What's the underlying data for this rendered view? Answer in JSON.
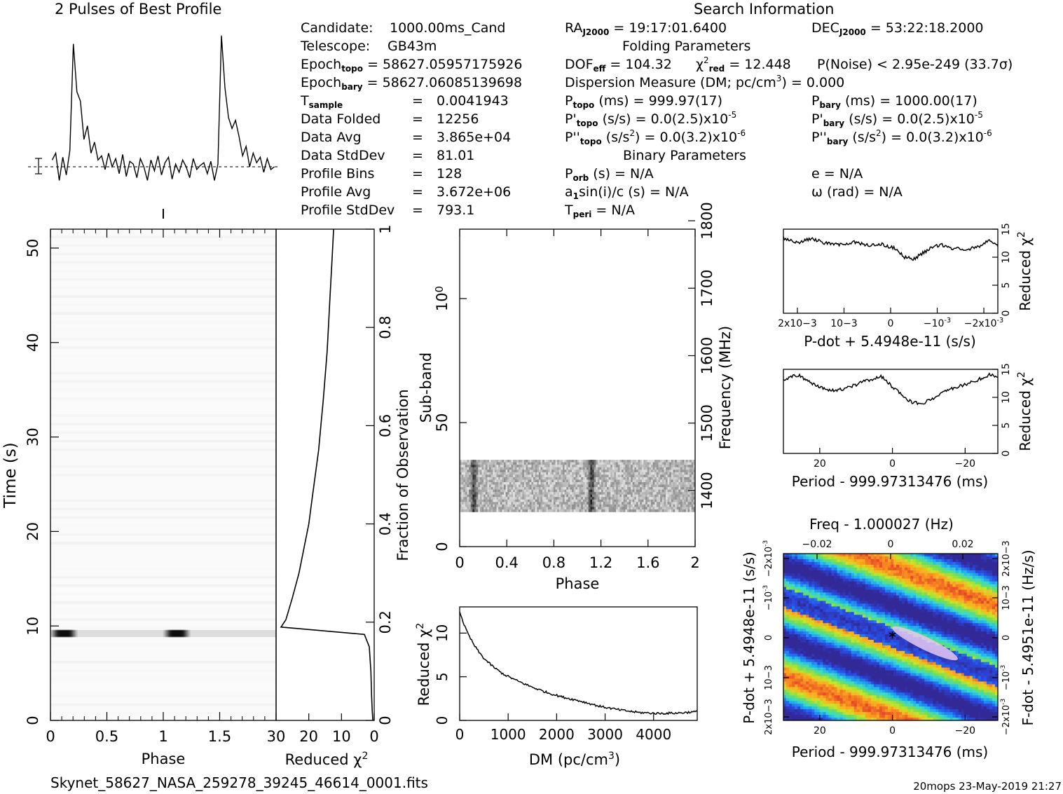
{
  "texts": {
    "profile_title": "2 Pulses of Best Profile",
    "search_title": "Search Information",
    "footer_file": "Skynet_58627_NASA_259278_39245_46614_0001.fits",
    "footer_stamp": "20mops 23-May-2019 21:27"
  },
  "info": {
    "candidate": {
      "label": "Candidate:",
      "value": "1000.00ms_Cand"
    },
    "telescope": {
      "label": "Telescope:",
      "value": "GB43m"
    },
    "epoch_topo": {
      "label": "Epoch",
      "sub": "topo",
      "value": "= 58627.05957175926"
    },
    "epoch_bary": {
      "label": "Epoch",
      "sub": "bary",
      "value": "= 58627.06085139698"
    },
    "t_sample": {
      "label": "T",
      "sub": "sample",
      "eq": "=",
      "value": "0.0041943"
    },
    "data_folded": {
      "label": "Data Folded",
      "eq": "=",
      "value": "12256"
    },
    "data_avg": {
      "label": "Data Avg",
      "eq": "=",
      "value": "3.865e+04"
    },
    "data_std": {
      "label": "Data StdDev",
      "eq": "=",
      "value": "81.01"
    },
    "profile_bins": {
      "label": "Profile Bins",
      "eq": "=",
      "value": "128"
    },
    "profile_avg": {
      "label": "Profile Avg",
      "eq": "=",
      "value": "3.672e+06"
    },
    "profile_std": {
      "label": "Profile StdDev",
      "eq": "=",
      "value": "793.1"
    },
    "ra": {
      "label": "RA",
      "sub": "J2000",
      "value": "= 19:17:01.6400"
    },
    "dec": {
      "label": "DEC",
      "sub": "J2000",
      "value": "= 53:22:18.2000"
    },
    "folding_title": "Folding Parameters",
    "dof": {
      "label": "DOF",
      "sub": "eff",
      "value": "= 104.32"
    },
    "chi2": {
      "sym": "χ",
      "sup": "2",
      "sub": "red",
      "value": "= 12.448"
    },
    "pnoise": {
      "value": "P(Noise) < 2.95e-249   (33.7σ)"
    },
    "dm": {
      "text": "Dispersion Measure (DM; pc/cm",
      "sup": "3",
      "tail": ") = 0.000"
    },
    "ptopo": {
      "label": "P",
      "sub": "topo",
      "value": "(ms) =  999.97(17)"
    },
    "pbary": {
      "label": "P",
      "sub": "bary",
      "value": "(ms) =  1000.00(17)"
    },
    "pdtopo": {
      "label": "P'",
      "sub": "topo",
      "value": "(s/s) = 0.0(2.5)x10",
      "sup": "-5"
    },
    "pdbary": {
      "label": "P'",
      "sub": "bary",
      "value": "(s/s) = 0.0(2.5)x10",
      "sup": "-5"
    },
    "pddtopo": {
      "label": "P''",
      "sub": "topo",
      "value1": "(s/s",
      "sup1": "2",
      "value2": ") = 0.0(3.2)x10",
      "sup2": "-6"
    },
    "pddbary": {
      "label": "P''",
      "sub": "bary",
      "value1": "(s/s",
      "sup1": "2",
      "value2": ") = 0.0(3.2)x10",
      "sup2": "-6"
    },
    "binary_title": "Binary Parameters",
    "porb": {
      "label": "P",
      "sub": "orb",
      "value": "(s) = N/A"
    },
    "ecc": {
      "value": "e = N/A"
    },
    "asini": {
      "l1": "a",
      "sub": "1",
      "l2": "sin(i)/c (s) = N/A"
    },
    "omega": {
      "value": "ω (rad) = N/A"
    },
    "tperi": {
      "label": "T",
      "sub": "peri",
      "value": "= N/A"
    }
  },
  "chart_data": [
    {
      "id": "pulse_profile",
      "type": "line",
      "title": "2 Pulses of Best Profile",
      "x_range": [
        0,
        2
      ],
      "y": [
        0.05,
        0.1,
        -0.1,
        0.07,
        -0.06,
        0.12,
        0.9,
        0.55,
        0.48,
        0.2,
        0.3,
        0.1,
        0.18,
        0.05,
        0.08,
        -0.02,
        0.1,
        0.0,
        0.06,
        -0.05,
        0.09,
        -0.07,
        0.04,
        0.02,
        -0.08,
        0.06,
        0.0,
        -0.1,
        0.05,
        -0.03,
        0.08,
        -0.06,
        0.03,
        0.07,
        -0.09,
        0.02,
        -0.04,
        0.05,
        0.0,
        -0.08,
        0.06,
        -0.02,
        0.01,
        0.03,
        -0.05,
        0.04,
        -0.1,
        0.02,
        0.96,
        0.58,
        0.36,
        0.28,
        0.34,
        0.22,
        0.08,
        0.15,
        0.0,
        0.1,
        0.03,
        0.07,
        -0.04,
        0.06,
        -0.02,
        0.0
      ]
    },
    {
      "id": "time_phase",
      "type": "heatmap",
      "xlabel": "Phase",
      "ylabel": "Time (s)",
      "x_ticks": [
        "0",
        "0.5",
        "1",
        "1.5"
      ],
      "y_ticks": [
        "0",
        "10",
        "20",
        "30",
        "40",
        "50"
      ],
      "x_range": [
        0,
        2
      ],
      "y_range": [
        0,
        52
      ],
      "bright_subint_time": 9.2,
      "pulse_phases": [
        0.12,
        1.12
      ]
    },
    {
      "id": "reduced_chi2_vs_fraction",
      "type": "line",
      "xlabel": "Reduced χ2",
      "ylabel": "Fraction of Observation",
      "x_ticks": [
        "30",
        "20",
        "10",
        "0"
      ],
      "y_ticks": [
        "0",
        "0.2",
        "0.4",
        "0.6",
        "0.8",
        "1"
      ],
      "x_range": [
        30,
        0
      ],
      "y_range": [
        0,
        1
      ],
      "points": [
        [
          0.4,
          0.0
        ],
        [
          0.6,
          0.02
        ],
        [
          0.8,
          0.05
        ],
        [
          1.0,
          0.1
        ],
        [
          1.5,
          0.15
        ],
        [
          3.0,
          0.175
        ],
        [
          28.5,
          0.19
        ],
        [
          27.0,
          0.205
        ],
        [
          25.0,
          0.25
        ],
        [
          23.0,
          0.3
        ],
        [
          21.5,
          0.35
        ],
        [
          20.0,
          0.4
        ],
        [
          19.0,
          0.45
        ],
        [
          18.0,
          0.5
        ],
        [
          17.0,
          0.55
        ],
        [
          16.3,
          0.6
        ],
        [
          15.6,
          0.65
        ],
        [
          15.0,
          0.7
        ],
        [
          14.4,
          0.75
        ],
        [
          14.0,
          0.8
        ],
        [
          13.6,
          0.85
        ],
        [
          13.2,
          0.9
        ],
        [
          12.8,
          0.95
        ],
        [
          12.4,
          1.0
        ]
      ]
    },
    {
      "id": "subband_phase",
      "type": "heatmap",
      "xlabel": "Phase",
      "ylabel": "Sub-band",
      "y2label": "Frequency (MHz)",
      "x_ticks": [
        "0",
        "0.4",
        "0.8",
        "1.2",
        "1.6",
        "2"
      ],
      "y_ticks": [
        "0",
        "50",
        "100"
      ],
      "y2_ticks": [
        "1400",
        "1500",
        "1600",
        "1700",
        "1800"
      ],
      "x_range": [
        0,
        2
      ],
      "y_range": [
        0,
        128
      ],
      "filled_subbands": [
        14,
        35
      ],
      "pulse_phases": [
        0.12,
        1.12
      ]
    },
    {
      "id": "dm_curve",
      "type": "line",
      "xlabel": "DM (pc/cm3)",
      "ylabel": "Reduced χ2",
      "x_ticks": [
        "0",
        "1000",
        "2000",
        "3000",
        "4000"
      ],
      "y_ticks": [
        "0",
        "5",
        "10"
      ],
      "x_range": [
        0,
        4900
      ],
      "y_range": [
        0,
        13
      ],
      "points": [
        [
          0,
          12.5
        ],
        [
          100,
          10.8
        ],
        [
          200,
          9.6
        ],
        [
          300,
          8.6
        ],
        [
          400,
          7.8
        ],
        [
          500,
          7.1
        ],
        [
          700,
          6.1
        ],
        [
          900,
          5.3
        ],
        [
          1200,
          4.5
        ],
        [
          1500,
          3.8
        ],
        [
          1800,
          3.2
        ],
        [
          2100,
          2.7
        ],
        [
          2500,
          2.2
        ],
        [
          2900,
          1.6
        ],
        [
          3300,
          1.2
        ],
        [
          3700,
          0.9
        ],
        [
          4100,
          0.8
        ],
        [
          4500,
          0.85
        ],
        [
          4900,
          1.0
        ]
      ]
    },
    {
      "id": "pdot_curve",
      "type": "line",
      "xlabel": "P-dot + 5.4948e-11 (s/s)",
      "ylabel": "Reduced χ2",
      "x_ticks": [
        "2x10-3",
        "10-3",
        "0",
        "-10-3",
        "-2x10-3"
      ],
      "y_ticks": [
        "0",
        "5",
        "10",
        "15"
      ],
      "x_range": [
        0.0023,
        -0.0023
      ],
      "y_range": [
        0,
        15
      ],
      "points": [
        [
          0.0023,
          13.4
        ],
        [
          0.002,
          12.6
        ],
        [
          0.0017,
          13.3
        ],
        [
          0.0014,
          12.5
        ],
        [
          0.0011,
          12.2
        ],
        [
          0.0008,
          12.7
        ],
        [
          0.0005,
          12.1
        ],
        [
          0.0002,
          12.3
        ],
        [
          -0.0001,
          11.6
        ],
        [
          -0.0003,
          10.0
        ],
        [
          -0.0005,
          9.7
        ],
        [
          -0.0007,
          10.8
        ],
        [
          -0.0009,
          11.8
        ],
        [
          -0.0011,
          12.2
        ],
        [
          -0.0013,
          11.6
        ],
        [
          -0.0016,
          11.4
        ],
        [
          -0.0019,
          11.8
        ],
        [
          -0.0021,
          12.9
        ],
        [
          -0.0023,
          12.2
        ]
      ]
    },
    {
      "id": "period_curve",
      "type": "line",
      "xlabel": "Period - 999.97313476 (ms)",
      "ylabel": "Reduced χ2",
      "x_ticks": [
        "20",
        "0",
        "-20"
      ],
      "y_ticks": [
        "0",
        "5",
        "10",
        "15"
      ],
      "x_range": [
        30,
        -29
      ],
      "y_range": [
        0,
        15
      ],
      "points": [
        [
          30,
          13.2
        ],
        [
          26,
          14.0
        ],
        [
          22,
          12.5
        ],
        [
          18,
          11.2
        ],
        [
          14,
          11.4
        ],
        [
          10,
          12.3
        ],
        [
          6,
          13.2
        ],
        [
          3,
          13.7
        ],
        [
          0,
          11.9
        ],
        [
          -3,
          10.2
        ],
        [
          -5,
          9.2
        ],
        [
          -8,
          8.8
        ],
        [
          -11,
          9.8
        ],
        [
          -15,
          11.2
        ],
        [
          -19,
          12.1
        ],
        [
          -23,
          13.0
        ],
        [
          -27,
          14.1
        ],
        [
          -29,
          13.6
        ]
      ]
    },
    {
      "id": "period_pdot_plane",
      "type": "heatmap",
      "xlabel": "Period - 999.97313476 (ms)",
      "x2label": "Freq - 1.000027 (Hz)",
      "ylabel": "P-dot + 5.4948e-11 (s/s)",
      "y2label": "F-dot - 5.4951e-11 (Hz/s)",
      "x_ticks": [
        "20",
        "0",
        "-20"
      ],
      "x2_ticks": [
        "-0.02",
        "0",
        "0.02"
      ],
      "y_ticks": [
        "2x10-3",
        "10-3",
        "0",
        "-10-3",
        "-2x10-3"
      ],
      "y2_ticks": [
        "-2x10-3",
        "-10-3",
        "0",
        "10-3",
        "2x10-3"
      ],
      "x_range": [
        30,
        -29
      ],
      "y_range": [
        0.0023,
        -0.0023
      ],
      "best": [
        0,
        0
      ]
    }
  ]
}
